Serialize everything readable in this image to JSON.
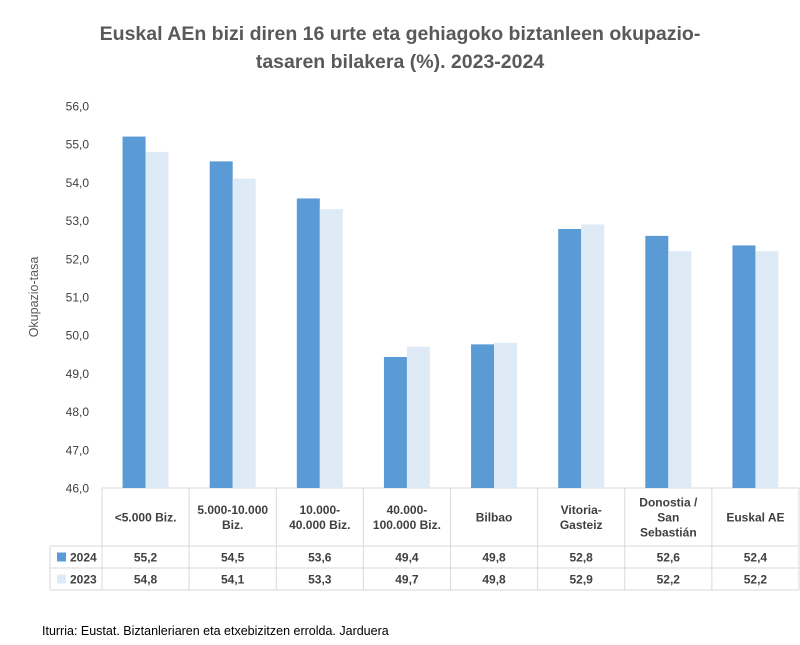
{
  "chart_data": {
    "type": "bar",
    "title": "Euskal AEn bizi diren 16 urte eta gehiagoko biztanleen okupazio-tasaren bilakera (%). 2023-2024",
    "title_lines": [
      "Euskal AEn bizi diren 16 urte eta gehiagoko biztanleen okupazio-",
      "tasaren bilakera (%). 2023-2024"
    ],
    "ylabel": "Okupazio-tasa",
    "ylim": [
      46,
      56
    ],
    "yticks": [
      "46,0",
      "47,0",
      "48,0",
      "49,0",
      "50,0",
      "51,0",
      "52,0",
      "53,0",
      "54,0",
      "55,0",
      "56,0"
    ],
    "categories": [
      [
        "<5.000 Biz."
      ],
      [
        "5.000-10.000",
        "Biz."
      ],
      [
        "10.000-",
        "40.000 Biz."
      ],
      [
        "40.000-",
        "100.000 Biz."
      ],
      [
        "Bilbao"
      ],
      [
        "Vitoria-",
        "Gasteiz"
      ],
      [
        "Donostia /",
        "San",
        "Sebastián"
      ],
      [
        "Euskal AE"
      ]
    ],
    "series": [
      {
        "name": "2024",
        "color": "#5b9bd5",
        "values": [
          55.2,
          54.55,
          53.58,
          49.43,
          49.76,
          52.78,
          52.6,
          52.35
        ],
        "labels": [
          "55,2",
          "54,5",
          "53,6",
          "49,4",
          "49,8",
          "52,8",
          "52,6",
          "52,4"
        ]
      },
      {
        "name": "2023",
        "color": "#deebf7",
        "values": [
          54.8,
          54.1,
          53.3,
          49.7,
          49.8,
          52.9,
          52.2,
          52.2
        ],
        "labels": [
          "54,8",
          "54,1",
          "53,3",
          "49,7",
          "49,8",
          "52,9",
          "52,2",
          "52,2"
        ]
      }
    ],
    "grid": false,
    "legend": "data-table"
  },
  "source": "Iturria: Eustat. Biztanleriaren eta etxebizitzen errolda. Jarduera"
}
